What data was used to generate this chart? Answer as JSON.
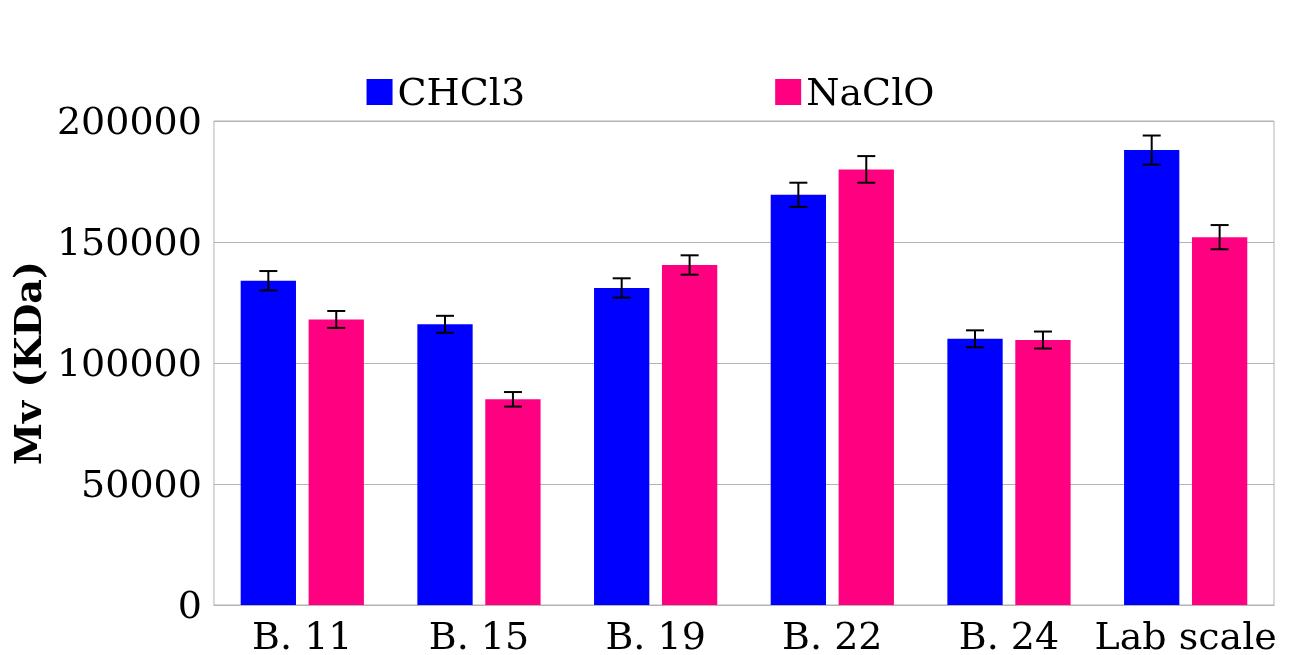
{
  "chart_data": {
    "type": "bar",
    "ylabel": "Mv (KDa)",
    "categories": [
      "B. 11",
      "B. 15",
      "B. 19",
      "B. 22",
      "B. 24",
      "Lab scale"
    ],
    "series": [
      {
        "name": "CHCl3",
        "color": "#0000ff",
        "values": [
          134000,
          116000,
          131000,
          169500,
          110000,
          188000
        ],
        "errors": [
          4000,
          3500,
          4000,
          5000,
          3500,
          6000
        ]
      },
      {
        "name": "NaClO",
        "color": "#ff0080",
        "values": [
          118000,
          85000,
          140500,
          180000,
          109500,
          152000
        ],
        "errors": [
          3500,
          3000,
          4000,
          5500,
          3500,
          5000
        ]
      }
    ],
    "ylim": [
      0,
      200000
    ],
    "yticks": [
      0,
      50000,
      100000,
      150000,
      200000
    ],
    "grid": "y",
    "legend": "top"
  }
}
